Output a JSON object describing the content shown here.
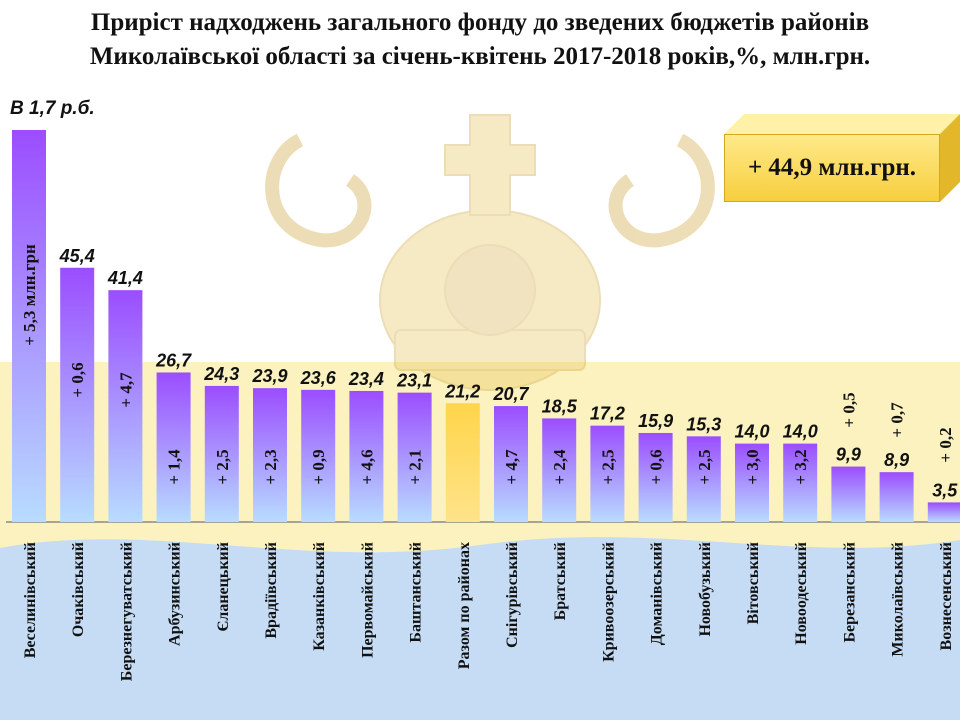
{
  "title_line1": "Приріст надходжень загального фонду до зведених бюджетів районів",
  "title_line2": "Миколаївської області за січень-квітень 2017-2018 років,%, млн.грн.",
  "note": "В 1,7 р.б.",
  "total_label": "+ 44,9 млн.грн.",
  "colors": {
    "bar_top": "#9b4dff",
    "bar_bottom": "#b8dcff",
    "highlight_top": "#ffd54a",
    "highlight_bottom": "#ffe38a",
    "band_yellow": "#fbf2c0",
    "band_blue": "#c6dcf4"
  },
  "chart_data": {
    "type": "bar",
    "title": "Приріст надходжень загального фонду до зведених бюджетів районів Миколаївської області за січень-квітень 2017-2018 років,%, млн.грн.",
    "categories": [
      "Веселинівський",
      "Очаківський",
      "Березнегуватський",
      "Арбузинський",
      "Єланецький",
      "Врадіївський",
      "Казанківський",
      "Первомайський",
      "Баштанський",
      "Разом по районах",
      "Снігурівський",
      "Братський",
      "Кривоозерський",
      "Доманівський",
      "Новобузький",
      "Вітовський",
      "Новоодеський",
      "Березанський",
      "Миколаївський",
      "Вознесенський"
    ],
    "values": [
      70,
      45.4,
      41.4,
      26.7,
      24.3,
      23.9,
      23.6,
      23.4,
      23.1,
      21.2,
      20.7,
      18.5,
      17.2,
      15.9,
      15.3,
      14.0,
      14.0,
      9.9,
      8.9,
      3.5
    ],
    "value_labels": [
      "",
      "45,4",
      "41,4",
      "26,7",
      "24,3",
      "23,9",
      "23,6",
      "23,4",
      "23,1",
      "21,2",
      "20,7",
      "18,5",
      "17,2",
      "15,9",
      "15,3",
      "14,0",
      "14,0",
      "9,9",
      "8,9",
      "3,5"
    ],
    "delta_labels": [
      "+ 5,3 млн.грн",
      "+ 0,6",
      "+ 4,7",
      "+ 1,4",
      "+ 2,5",
      "+ 2,3",
      "+ 0,9",
      "+ 4,6",
      "+ 2,1",
      "",
      "+ 4,7",
      "+ 2,4",
      "+ 2,5",
      "+ 0,6",
      "+ 2,5",
      "+ 3,0",
      "+ 3,2",
      "+ 0,5",
      "+ 0,7",
      "+ 0,2"
    ],
    "highlight_category": "Разом по районах",
    "ylim": [
      0,
      70
    ],
    "grid": false,
    "legend": "none"
  }
}
